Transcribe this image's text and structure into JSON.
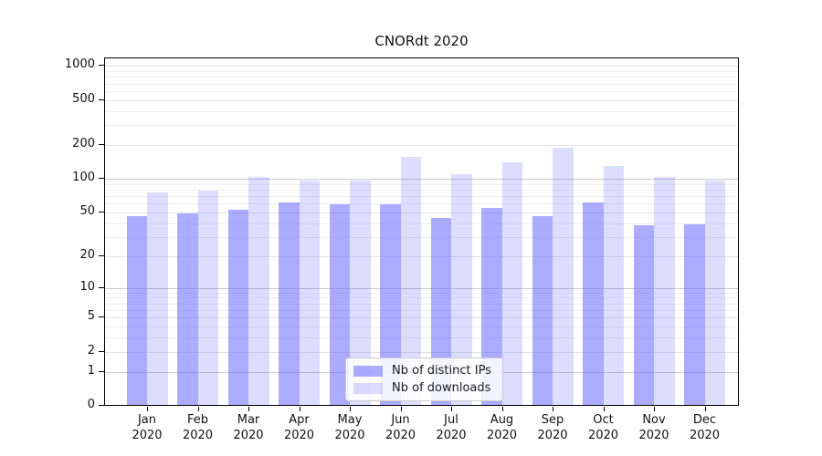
{
  "title": "CNORdt 2020",
  "chart_data": {
    "type": "bar",
    "title": "CNORdt 2020",
    "y_scale": "log1p",
    "y_scale_note": "y position proportional to log10(value+1), so 0 sits on the baseline",
    "categories": [
      "Jan 2020",
      "Feb 2020",
      "Mar 2020",
      "Apr 2020",
      "May 2020",
      "Jun 2020",
      "Jul 2020",
      "Aug 2020",
      "Sep 2020",
      "Oct 2020",
      "Nov 2020",
      "Dec 2020"
    ],
    "series": [
      {
        "name": "Nb of distinct IPs",
        "color": "rgba(102,102,255,0.55)",
        "values": [
          46,
          49,
          53,
          61,
          59,
          59,
          45,
          55,
          46,
          61,
          38,
          39
        ]
      },
      {
        "name": "Nb of downloads",
        "color": "rgba(102,102,255,0.22)",
        "values": [
          75,
          78,
          105,
          97,
          97,
          157,
          110,
          140,
          190,
          129,
          104,
          96
        ]
      }
    ],
    "y_axis": {
      "tick_values": [
        0,
        1,
        2,
        5,
        10,
        20,
        50,
        100,
        200,
        500,
        1000
      ],
      "tick_labels": [
        "0",
        "1",
        "2",
        "5",
        "10",
        "20",
        "50",
        "100",
        "200",
        "500",
        "1000"
      ],
      "max": 1200
    },
    "x_axis": {
      "months": [
        "Jan",
        "Feb",
        "Mar",
        "Apr",
        "May",
        "Jun",
        "Jul",
        "Aug",
        "Sep",
        "Oct",
        "Nov",
        "Dec"
      ],
      "year": "2020"
    },
    "legend": {
      "position": "bottom-center",
      "entries": [
        "Nb of distinct IPs",
        "Nb of downloads"
      ]
    },
    "grid": {
      "orientation": "horizontal",
      "minor_values_per_decade": [
        1,
        2,
        3,
        4,
        5,
        6,
        7,
        8,
        9
      ]
    }
  },
  "colors": {
    "bar_distinct_ips": "rgba(102,102,255,0.55)",
    "bar_downloads": "rgba(102,102,255,0.22)",
    "grid_decade": "#c9c9c9",
    "grid_labeled": "#e2e2e2",
    "grid_minor": "#f0f0f0",
    "axis_line": "#000000",
    "text": "#111111",
    "legend_border": "#cccccc"
  }
}
